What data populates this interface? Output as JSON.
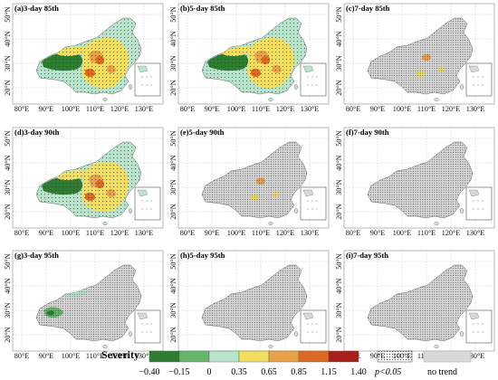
{
  "colors": {
    "sev_neg040": "#2e7d32",
    "sev_neg015": "#66b56a",
    "sev_0": "#b9e4cc",
    "sev_035": "#f2df62",
    "sev_065": "#eaa24a",
    "sev_085": "#dc6a22",
    "sev_115": "#a8201a",
    "no_trend": "#d9d9d9",
    "grid": "#b0b0b0",
    "border": "#666666"
  },
  "axes": {
    "lon_labels": [
      "80°E",
      "90°E",
      "100°E",
      "110°E",
      "120°E",
      "130°E"
    ],
    "lat_labels": [
      "50°N",
      "40°N",
      "30°N",
      "20°N"
    ]
  },
  "panels": [
    {
      "label": "(a)3-day 85th",
      "level": 3,
      "stipple": "sparse"
    },
    {
      "label": "(b)5-day 85th",
      "level": 3,
      "stipple": "sparse"
    },
    {
      "label": "(c)7-day 85th",
      "level": 1,
      "stipple": "dense"
    },
    {
      "label": "(d)3-day 90th",
      "level": 3,
      "stipple": "sparse"
    },
    {
      "label": "(e)5-day 90th",
      "level": 1,
      "stipple": "dense"
    },
    {
      "label": "(f)7-day 90th",
      "level": 0,
      "stipple": "dense"
    },
    {
      "label": "(g)3-day 95th",
      "level": 2,
      "stipple": "dense"
    },
    {
      "label": "(h)5-day 95th",
      "level": 0,
      "stipple": "dense"
    },
    {
      "label": "(i)7-day 95th",
      "level": 0,
      "stipple": "dense"
    }
  ],
  "legend": {
    "title": "Severity",
    "ticks": [
      "−0.40",
      "−0.15",
      "0",
      "0.35",
      "0.65",
      "0.85",
      "1.15",
      "1.40"
    ],
    "significance_label": "p<0.05",
    "no_trend_label": "no trend"
  }
}
